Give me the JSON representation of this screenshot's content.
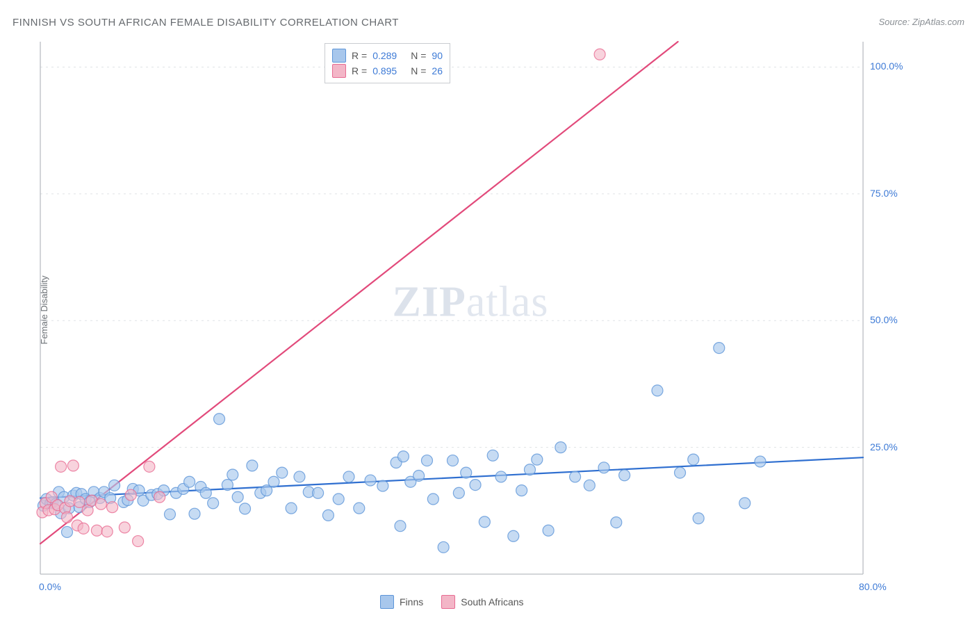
{
  "title": "FINNISH VS SOUTH AFRICAN FEMALE DISABILITY CORRELATION CHART",
  "source": "Source: ZipAtlas.com",
  "ylabel": "Female Disability",
  "watermark_a": "ZIP",
  "watermark_b": "atlas",
  "chart": {
    "type": "scatter",
    "background_color": "#ffffff",
    "axis_color": "#b9bdc2",
    "grid_color": "#dfe2e5",
    "text_color": "#6b7075",
    "value_color": "#3d7ad6",
    "xlim": [
      0,
      80
    ],
    "ylim": [
      0,
      105
    ],
    "yticks": [
      {
        "v": 25,
        "label": "25.0%"
      },
      {
        "v": 50,
        "label": "50.0%"
      },
      {
        "v": 75,
        "label": "75.0%"
      },
      {
        "v": 100,
        "label": "100.0%"
      }
    ],
    "xticks": [
      {
        "v": 0,
        "label": "0.0%"
      },
      {
        "v": 80,
        "label": "80.0%"
      }
    ],
    "series": [
      {
        "name": "Finns",
        "marker_fill": "#a8c7ec",
        "marker_stroke": "#5d95d8",
        "marker_r": 8,
        "marker_opacity": 0.65,
        "line_color": "#2f6fd0",
        "line_width": 2.2,
        "R": "0.289",
        "N": "90",
        "trend": {
          "x1": 0,
          "y1": 15,
          "x2": 80,
          "y2": 23
        },
        "points": [
          [
            0.3,
            13.5
          ],
          [
            0.6,
            14.8
          ],
          [
            1.0,
            14.0
          ],
          [
            1.2,
            14.2
          ],
          [
            1.5,
            13.8
          ],
          [
            1.8,
            16.2
          ],
          [
            2.0,
            12.0
          ],
          [
            2.3,
            15.2
          ],
          [
            2.6,
            8.3
          ],
          [
            2.8,
            13.0
          ],
          [
            3.2,
            15.5
          ],
          [
            3.5,
            16.0
          ],
          [
            3.8,
            13.2
          ],
          [
            4.0,
            15.8
          ],
          [
            4.4,
            14.8
          ],
          [
            4.8,
            14.2
          ],
          [
            5.2,
            16.2
          ],
          [
            5.8,
            15.0
          ],
          [
            6.2,
            16.2
          ],
          [
            6.8,
            15.0
          ],
          [
            7.2,
            17.5
          ],
          [
            8.1,
            14.2
          ],
          [
            8.5,
            14.6
          ],
          [
            9.0,
            16.8
          ],
          [
            9.6,
            16.5
          ],
          [
            10.0,
            14.5
          ],
          [
            10.8,
            15.6
          ],
          [
            11.4,
            15.8
          ],
          [
            12.0,
            16.5
          ],
          [
            12.6,
            11.8
          ],
          [
            13.2,
            16.0
          ],
          [
            13.9,
            16.8
          ],
          [
            14.5,
            18.2
          ],
          [
            15.0,
            11.9
          ],
          [
            15.6,
            17.2
          ],
          [
            16.1,
            16.0
          ],
          [
            16.8,
            14.0
          ],
          [
            17.4,
            30.6
          ],
          [
            18.2,
            17.6
          ],
          [
            18.7,
            19.6
          ],
          [
            19.2,
            15.2
          ],
          [
            19.9,
            12.9
          ],
          [
            20.6,
            21.4
          ],
          [
            21.4,
            16.0
          ],
          [
            22.0,
            16.5
          ],
          [
            22.7,
            18.2
          ],
          [
            23.5,
            20.0
          ],
          [
            24.4,
            13.0
          ],
          [
            25.2,
            19.2
          ],
          [
            26.1,
            16.2
          ],
          [
            27.0,
            16.0
          ],
          [
            28.0,
            11.6
          ],
          [
            29.0,
            14.8
          ],
          [
            30.0,
            19.2
          ],
          [
            31.0,
            13.0
          ],
          [
            32.1,
            18.5
          ],
          [
            33.3,
            17.4
          ],
          [
            34.6,
            22.0
          ],
          [
            35.0,
            9.5
          ],
          [
            35.3,
            23.2
          ],
          [
            36.0,
            18.2
          ],
          [
            36.8,
            19.4
          ],
          [
            37.6,
            22.4
          ],
          [
            38.2,
            14.8
          ],
          [
            40.1,
            22.4
          ],
          [
            39.2,
            5.3
          ],
          [
            40.7,
            16.0
          ],
          [
            41.4,
            20.0
          ],
          [
            42.3,
            17.6
          ],
          [
            43.2,
            10.3
          ],
          [
            44.0,
            23.4
          ],
          [
            44.8,
            19.2
          ],
          [
            46.0,
            7.5
          ],
          [
            46.8,
            16.5
          ],
          [
            47.6,
            20.6
          ],
          [
            48.3,
            22.6
          ],
          [
            49.4,
            8.6
          ],
          [
            50.6,
            25.0
          ],
          [
            52.0,
            19.2
          ],
          [
            53.4,
            17.5
          ],
          [
            54.8,
            21.0
          ],
          [
            56.0,
            10.2
          ],
          [
            56.8,
            19.5
          ],
          [
            60.0,
            36.2
          ],
          [
            62.2,
            20.0
          ],
          [
            63.5,
            22.6
          ],
          [
            64.0,
            11.0
          ],
          [
            66.0,
            44.6
          ],
          [
            68.5,
            14.0
          ],
          [
            70.0,
            22.2
          ]
        ]
      },
      {
        "name": "South Africans",
        "marker_fill": "#f3b6c7",
        "marker_stroke": "#e86b92",
        "marker_r": 8,
        "marker_opacity": 0.6,
        "line_color": "#e24a7b",
        "line_width": 2.2,
        "R": "0.895",
        "N": "26",
        "trend": {
          "x1": 0,
          "y1": 6,
          "x2": 62,
          "y2": 105
        },
        "points": [
          [
            0.2,
            12.2
          ],
          [
            0.5,
            14.0
          ],
          [
            0.8,
            12.6
          ],
          [
            1.1,
            15.2
          ],
          [
            1.4,
            12.8
          ],
          [
            1.7,
            13.6
          ],
          [
            2.0,
            21.2
          ],
          [
            2.4,
            13.0
          ],
          [
            2.6,
            11.2
          ],
          [
            2.9,
            14.4
          ],
          [
            3.2,
            21.4
          ],
          [
            3.6,
            9.6
          ],
          [
            3.8,
            14.2
          ],
          [
            4.2,
            9.0
          ],
          [
            4.6,
            12.6
          ],
          [
            5.0,
            14.5
          ],
          [
            5.5,
            8.6
          ],
          [
            5.9,
            13.8
          ],
          [
            6.5,
            8.4
          ],
          [
            7.0,
            13.2
          ],
          [
            8.2,
            9.2
          ],
          [
            8.8,
            15.6
          ],
          [
            9.5,
            6.5
          ],
          [
            10.6,
            21.2
          ],
          [
            11.6,
            15.2
          ],
          [
            54.4,
            102.5
          ]
        ]
      }
    ]
  },
  "legend_top": {
    "label_R": "R =",
    "label_N": "N ="
  },
  "legend_bottom": {
    "items": [
      {
        "label": "Finns",
        "fill": "#a8c7ec",
        "stroke": "#5d95d8"
      },
      {
        "label": "South Africans",
        "fill": "#f3b6c7",
        "stroke": "#e86b92"
      }
    ]
  }
}
